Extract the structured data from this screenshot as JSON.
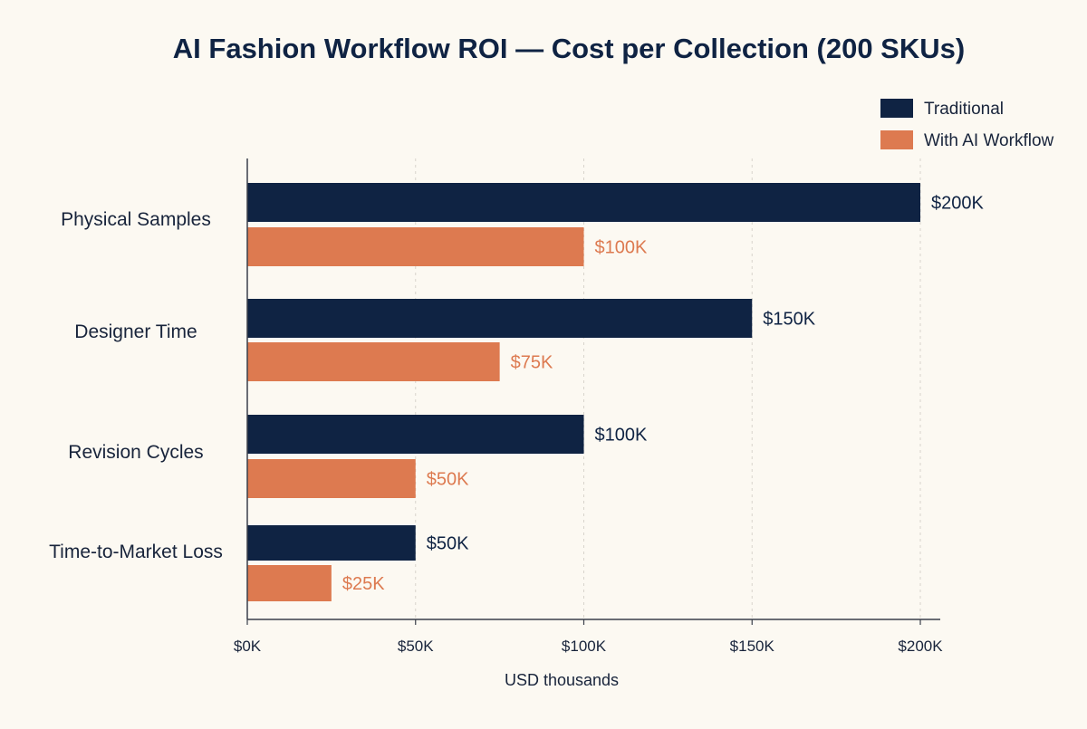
{
  "chart_data": {
    "type": "bar",
    "orientation": "horizontal",
    "title": "AI Fashion Workflow ROI — Cost per Collection (200 SKUs)",
    "xlabel": "USD thousands",
    "ylabel": "",
    "categories": [
      "Physical Samples",
      "Designer Time",
      "Revision Cycles",
      "Time-to-Market Loss"
    ],
    "series": [
      {
        "name": "Traditional",
        "values": [
          200,
          150,
          100,
          50
        ],
        "labels": [
          "$200K",
          "$150K",
          "$100K",
          "$50K"
        ],
        "color": "#0f2343"
      },
      {
        "name": "With AI Workflow",
        "values": [
          100,
          75,
          50,
          25
        ],
        "labels": [
          "$100K",
          "$75K",
          "$50K",
          "$25K"
        ],
        "color": "#dd7a50"
      }
    ],
    "xlim": [
      0,
      200
    ],
    "xticks": [
      0,
      50,
      100,
      150,
      200
    ],
    "xtick_labels": [
      "$0K",
      "$50K",
      "$100K",
      "$150K",
      "$200K"
    ],
    "grid": "vertical-dashed",
    "legend": "top-right",
    "colors": {
      "background": "#fcf9f2",
      "title": "#0f2343",
      "text": "#18243b",
      "grid": "#d8d4cc",
      "axis": "#3a3f4a"
    }
  }
}
